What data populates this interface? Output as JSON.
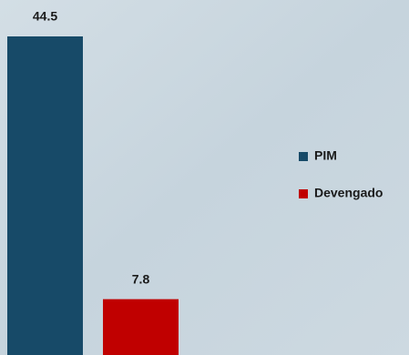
{
  "chart_data": {
    "type": "bar",
    "categories": [
      null
    ],
    "series": [
      {
        "name": "PIM",
        "color": "#174a68",
        "values": [
          44.5
        ]
      },
      {
        "name": "Devengado",
        "color": "#c00000",
        "values": [
          7.8
        ]
      }
    ],
    "legend": "right"
  }
}
